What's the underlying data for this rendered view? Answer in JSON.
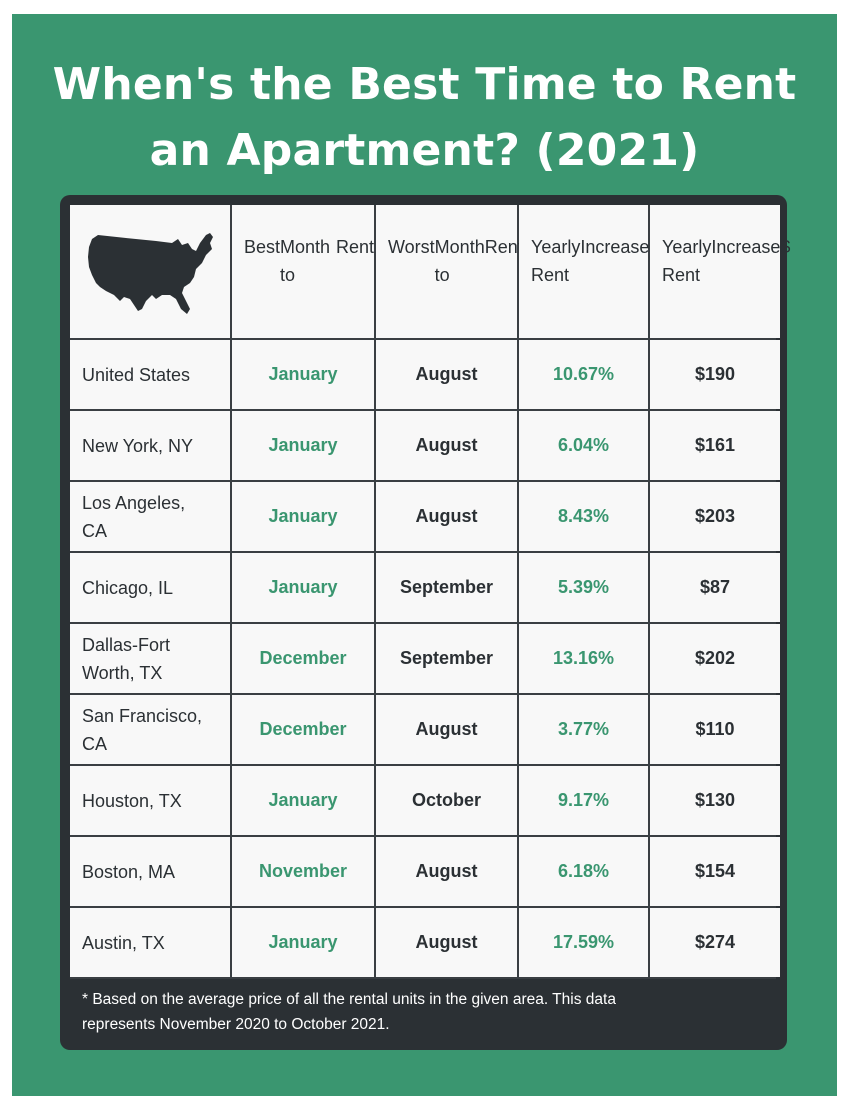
{
  "title_line1": "When's the Best Time to Rent",
  "title_line2": "an Apartment? (2021)",
  "colors": {
    "background": "#3a9670",
    "panel": "#2b3034",
    "accent": "#3a9670",
    "cell": "#f8f8f8"
  },
  "map_icon": "usa-map-icon",
  "headers": [
    [
      "Best",
      "Month to",
      "Rent"
    ],
    [
      "Worst",
      "Month to",
      "Rent"
    ],
    [
      "Yearly Rent",
      "Increase",
      "%"
    ],
    [
      "Yearly Rent",
      "Increase",
      "$"
    ]
  ],
  "chart_data": {
    "type": "table",
    "title": "When's the Best Time to Rent an Apartment? (2021)",
    "columns": [
      "",
      "Best Month to Rent",
      "Worst Month to Rent",
      "Yearly Rent Increase %",
      "Yearly Rent Increase $"
    ],
    "rows": [
      {
        "city": [
          "United States"
        ],
        "best": "January",
        "worst": "August",
        "pct": "10.67%",
        "usd": "$190"
      },
      {
        "city": [
          "New York, NY"
        ],
        "best": "January",
        "worst": "August",
        "pct": "6.04%",
        "usd": "$161"
      },
      {
        "city": [
          "Los Angeles,",
          "CA"
        ],
        "best": "January",
        "worst": "August",
        "pct": "8.43%",
        "usd": "$203"
      },
      {
        "city": [
          "Chicago, IL"
        ],
        "best": "January",
        "worst": "September",
        "pct": "5.39%",
        "usd": "$87"
      },
      {
        "city": [
          "Dallas-Fort",
          "Worth, TX"
        ],
        "best": "December",
        "worst": "September",
        "pct": "13.16%",
        "usd": "$202"
      },
      {
        "city": [
          "San Francisco,",
          "CA"
        ],
        "best": "December",
        "worst": "August",
        "pct": "3.77%",
        "usd": "$110"
      },
      {
        "city": [
          "Houston, TX"
        ],
        "best": "January",
        "worst": "October",
        "pct": "9.17%",
        "usd": "$130"
      },
      {
        "city": [
          "Boston, MA"
        ],
        "best": "November",
        "worst": "August",
        "pct": "6.18%",
        "usd": "$154"
      },
      {
        "city": [
          "Austin, TX"
        ],
        "best": "January",
        "worst": "August",
        "pct": "17.59%",
        "usd": "$274"
      }
    ]
  },
  "footnote_line1": "* Based on the average price of all the rental units in the given area. This data",
  "footnote_line2": "represents November 2020 to October 2021."
}
